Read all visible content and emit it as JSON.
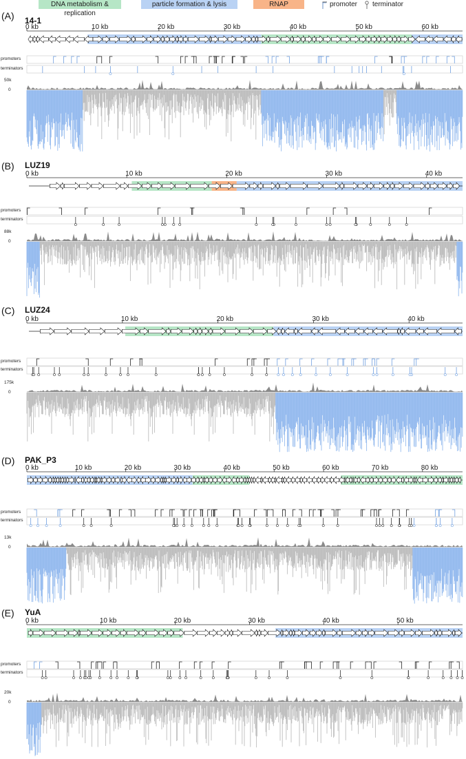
{
  "legend": {
    "dna_metabolism": "DNA metabolism & replication",
    "particle_formation": "particle formation & lysis",
    "rnap": "RNAP",
    "promoter": "promoter",
    "terminator": "terminator"
  },
  "colors": {
    "dna_metabolism": "#b6e6c6",
    "particle_formation": "#b9d2f4",
    "rnap": "#f8b488",
    "coverage_gray": "#bdbdbd",
    "coverage_blue": "#93b9ee",
    "promoter_blue": "#6f9fe0",
    "dark_marker": "#1f2c78"
  },
  "track_labels": {
    "promoters": "promoters",
    "terminators": "terminators"
  },
  "panels": [
    {
      "letter": "(A)",
      "name": "14-1",
      "genome_kb": 66,
      "ticks": [
        "0 kb",
        "10 kb",
        "20 kb",
        "30 kb",
        "40 kb",
        "50 kb",
        "60 kb"
      ],
      "scale_max": "50k",
      "regions": [
        {
          "type": "particle_formation",
          "start_kb": 9.2,
          "end_kb": 35.5
        },
        {
          "type": "dna_metabolism",
          "start_kb": 35.5,
          "end_kb": 58.3
        },
        {
          "type": "particle_formation",
          "start_kb": 58.3,
          "end_kb": 66
        }
      ]
    },
    {
      "letter": "(B)",
      "name": "LUZ19",
      "genome_kb": 43.6,
      "ticks": [
        "0 kb",
        "10 kb",
        "20 kb",
        "30 kb",
        "40 kb"
      ],
      "scale_max": "88k",
      "regions": [
        {
          "type": "dna_metabolism",
          "start_kb": 10.5,
          "end_kb": 18.5
        },
        {
          "type": "rnap",
          "start_kb": 18.5,
          "end_kb": 21
        },
        {
          "type": "particle_formation",
          "start_kb": 21,
          "end_kb": 43.6
        }
      ]
    },
    {
      "letter": "(C)",
      "name": "LUZ24",
      "genome_kb": 45.6,
      "ticks": [
        "0 kb",
        "10 kb",
        "20 kb",
        "30 kb",
        "40 kb"
      ],
      "scale_max": "175k",
      "regions": [
        {
          "type": "dna_metabolism",
          "start_kb": 10.3,
          "end_kb": 25.8
        },
        {
          "type": "particle_formation",
          "start_kb": 25.8,
          "end_kb": 45.6
        }
      ]
    },
    {
      "letter": "(D)",
      "name": "PAK_P3",
      "genome_kb": 88.1,
      "ticks": [
        "0 kb",
        "10 kb",
        "20 kb",
        "30 kb",
        "40 kb",
        "50 kb",
        "60 kb",
        "70 kb",
        "80 kb"
      ],
      "scale_max": "13k",
      "regions": [
        {
          "type": "particle_formation",
          "start_kb": 0,
          "end_kb": 33.5
        },
        {
          "type": "dna_metabolism",
          "start_kb": 33.5,
          "end_kb": 45
        },
        {
          "type": "dna_metabolism",
          "start_kb": 63.5,
          "end_kb": 88.1
        }
      ]
    },
    {
      "letter": "(E)",
      "name": "YuA",
      "genome_kb": 58.7,
      "ticks": [
        "0 kb",
        "10 kb",
        "20 kb",
        "30 kb",
        "40 kb",
        "50 kb"
      ],
      "scale_max": "20k",
      "regions": [
        {
          "type": "dna_metabolism",
          "start_kb": 0,
          "end_kb": 21
        },
        {
          "type": "particle_formation",
          "start_kb": 33.5,
          "end_kb": 58.7
        }
      ]
    }
  ]
}
